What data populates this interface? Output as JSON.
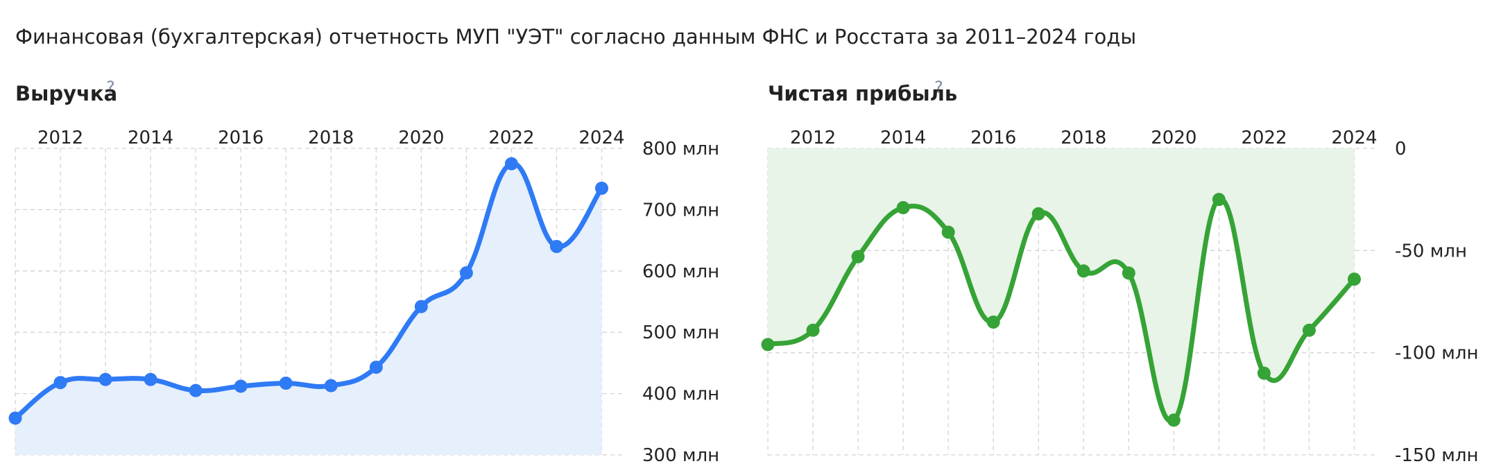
{
  "page": {
    "title": "Финансовая (бухгалтерская) отчетность МУП \"УЭТ\" согласно данным ФНС и Росстата за 2011–2024 годы",
    "help_symbol": "?"
  },
  "chart_data": [
    {
      "type": "area",
      "title": "Выручка",
      "color": "#2f7af5",
      "fill": "#e6effc",
      "x_ticks": [
        2012,
        2014,
        2016,
        2018,
        2020,
        2022,
        2024
      ],
      "x": [
        2011,
        2012,
        2013,
        2014,
        2015,
        2016,
        2017,
        2018,
        2019,
        2020,
        2021,
        2022,
        2023,
        2024
      ],
      "values": [
        360,
        418,
        423,
        423,
        405,
        412,
        417,
        413,
        443,
        542,
        597,
        775,
        640,
        735
      ],
      "y_ticks": [
        300,
        400,
        500,
        600,
        700,
        800
      ],
      "y_tick_labels": [
        "300 млн",
        "400 млн",
        "500 млн",
        "600 млн",
        "700 млн",
        "800 млн"
      ],
      "ylim": [
        300,
        800
      ],
      "y_axis_side": "right",
      "grid": true
    },
    {
      "type": "area",
      "title": "Чистая прибыль",
      "color": "#36a336",
      "fill": "#e8f4e8",
      "x_ticks": [
        2012,
        2014,
        2016,
        2018,
        2020,
        2022,
        2024
      ],
      "x": [
        2011,
        2012,
        2013,
        2014,
        2015,
        2016,
        2017,
        2018,
        2019,
        2020,
        2021,
        2022,
        2023,
        2024
      ],
      "values": [
        -96,
        -89,
        -53,
        -29,
        -41,
        -85,
        -32,
        -60,
        -61,
        -133,
        -25,
        -110,
        -89,
        -64
      ],
      "y_ticks": [
        0,
        -50,
        -100,
        -150
      ],
      "y_tick_labels": [
        "0",
        "-50 млн",
        "-100 млн",
        "-150 млн"
      ],
      "ylim": [
        -150,
        0
      ],
      "y_axis_side": "right",
      "grid": true
    }
  ]
}
